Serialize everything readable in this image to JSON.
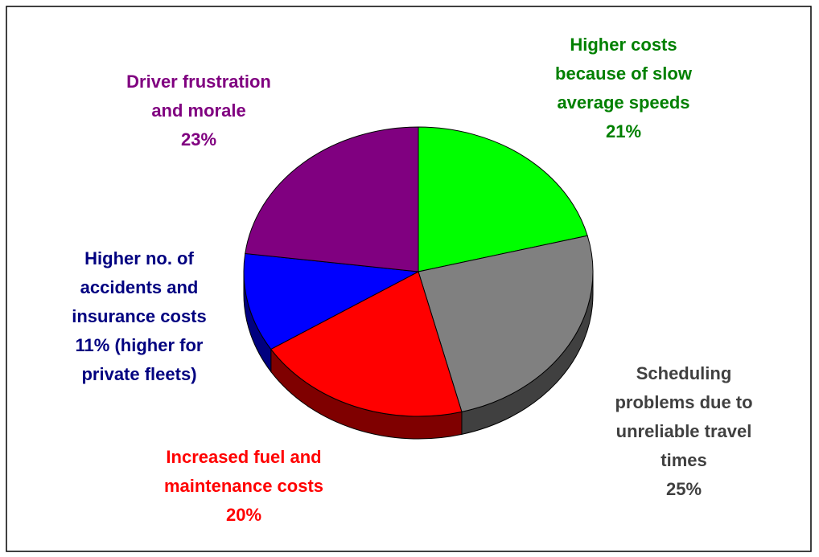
{
  "chart_data": {
    "type": "pie",
    "three_d": true,
    "categories": [
      [
        "Higher costs",
        "because of slow",
        "average speeds"
      ],
      [
        "Scheduling",
        "problems due to",
        "unreliable travel",
        "times"
      ],
      [
        "Increased fuel and",
        "maintenance costs"
      ],
      [
        "Higher no. of",
        "accidents and",
        "insurance costs"
      ],
      [
        "Driver frustration",
        "and morale"
      ]
    ],
    "values": [
      21,
      25,
      20,
      11,
      23
    ],
    "value_labels": [
      [
        "21%"
      ],
      [
        "25%"
      ],
      [
        "20%"
      ],
      [
        "11% (higher for",
        "private fleets)"
      ],
      [
        "23%"
      ]
    ],
    "colors": [
      "#00ff00",
      "#808080",
      "#ff0000",
      "#0000ff",
      "#800080"
    ],
    "label_colors": [
      "#008000",
      "#404040",
      "#ff0000",
      "#000080",
      "#800080"
    ]
  }
}
